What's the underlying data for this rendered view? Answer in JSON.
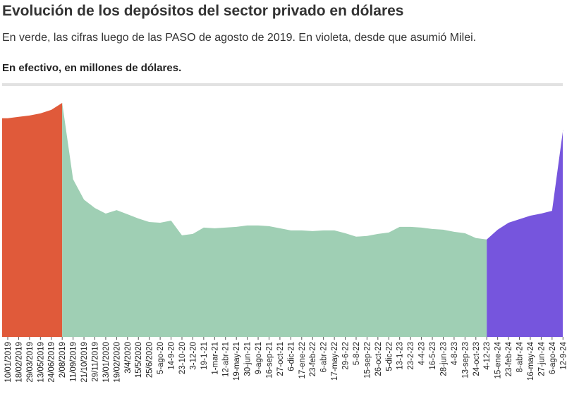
{
  "header": {
    "title": "Evolución de los depósitos del sector privado en dólares",
    "subtitle": "En verde, las cifras luego de las PASO de agosto de 2019. En violeta, desde que asumió Milei.",
    "unit_note": "En efectivo, en millones de dólares."
  },
  "chart_data": {
    "type": "bar",
    "title": "Evolución de los depósitos del sector privado en dólares",
    "subtitle": "En verde, las cifras luego de las PASO de agosto de 2019. En violeta, desde que asumió Milei.",
    "ylabel": "En efectivo, en millones de dólares.",
    "xlabel": "",
    "ylim": [
      0,
      34000
    ],
    "grid": false,
    "legend": "none",
    "colors": {
      "pre_paso": "#e05a3a",
      "post_paso": "#9fcfb4",
      "milei": "#7655dd"
    },
    "tick_labels": [
      "10/01/2019",
      "18/02/2019",
      "29/03/2019",
      "13/05/2019",
      "24/06/2019",
      "2/08/2019",
      "11/09/2019",
      "21/10/2019",
      "29/11/2019",
      "13/01/2020",
      "19/02/2020",
      "3/4/2020",
      "15/5/2020",
      "25/6/2020",
      "5-ago-20",
      "14-9-20",
      "23-10-20",
      "3-12-20",
      "19-1-21",
      "1-mar-21",
      "12-abr-21",
      "19-may-21",
      "30-jun-21",
      "9-ago-21",
      "16-sep-21",
      "27-oct-21",
      "6-dic-21",
      "17-ene-22",
      "23-feb-22",
      "6-abr-22",
      "17-may-22",
      "29-6-22",
      "5-8-22",
      "15-sep-22",
      "26-oct-22",
      "5-dic-22",
      "13-1-23",
      "23-2-23",
      "4-4-23",
      "16-5-23",
      "28-jun-23",
      "4-8-23",
      "13-sep-23",
      "24-oct-23",
      "4-12-23",
      "15-ene-24",
      "23-feb-24",
      "8-abr-24",
      "16-may-24",
      "27-jun-24",
      "6-ago-24",
      "12-9-24"
    ],
    "segments": [
      {
        "period": "pre-PASO",
        "color_key": "pre_paso",
        "from": "10/01/2019",
        "to": "2/08/2019"
      },
      {
        "period": "post-PASO",
        "color_key": "post_paso",
        "from": "2/08/2019",
        "to": "4-12-23"
      },
      {
        "period": "Milei",
        "color_key": "milei",
        "from": "4-12-23",
        "to": "12-9-24"
      }
    ],
    "series": [
      {
        "period": "pre-PASO",
        "values": [
          {
            "x": "10/01/2019",
            "y": 31200
          },
          {
            "x": "18/02/2019",
            "y": 31400
          },
          {
            "x": "29/03/2019",
            "y": 31600
          },
          {
            "x": "13/05/2019",
            "y": 31900
          },
          {
            "x": "24/06/2019",
            "y": 32400
          },
          {
            "x": "2/08/2019",
            "y": 33400
          }
        ]
      },
      {
        "period": "post-PASO",
        "values": [
          {
            "x": "2/08/2019",
            "y": 33400
          },
          {
            "x": "11/09/2019",
            "y": 22500
          },
          {
            "x": "21/10/2019",
            "y": 19600
          },
          {
            "x": "29/11/2019",
            "y": 18400
          },
          {
            "x": "13/01/2020",
            "y": 17600
          },
          {
            "x": "19/02/2020",
            "y": 18100
          },
          {
            "x": "3/4/2020",
            "y": 17500
          },
          {
            "x": "15/5/2020",
            "y": 16900
          },
          {
            "x": "25/6/2020",
            "y": 16400
          },
          {
            "x": "5-ago-20",
            "y": 16300
          },
          {
            "x": "14-9-20",
            "y": 16600
          },
          {
            "x": "23-10-20",
            "y": 14500
          },
          {
            "x": "3-12-20",
            "y": 14700
          },
          {
            "x": "19-1-21",
            "y": 15600
          },
          {
            "x": "1-mar-21",
            "y": 15500
          },
          {
            "x": "12-abr-21",
            "y": 15600
          },
          {
            "x": "19-may-21",
            "y": 15700
          },
          {
            "x": "30-jun-21",
            "y": 15900
          },
          {
            "x": "9-ago-21",
            "y": 15900
          },
          {
            "x": "16-sep-21",
            "y": 15800
          },
          {
            "x": "27-oct-21",
            "y": 15500
          },
          {
            "x": "6-dic-21",
            "y": 15200
          },
          {
            "x": "17-ene-22",
            "y": 15200
          },
          {
            "x": "23-feb-22",
            "y": 15100
          },
          {
            "x": "6-abr-22",
            "y": 15200
          },
          {
            "x": "17-may-22",
            "y": 15200
          },
          {
            "x": "29-6-22",
            "y": 14800
          },
          {
            "x": "5-8-22",
            "y": 14300
          },
          {
            "x": "15-sep-22",
            "y": 14400
          },
          {
            "x": "26-oct-22",
            "y": 14700
          },
          {
            "x": "5-dic-22",
            "y": 14900
          },
          {
            "x": "13-1-23",
            "y": 15700
          },
          {
            "x": "23-2-23",
            "y": 15700
          },
          {
            "x": "4-4-23",
            "y": 15600
          },
          {
            "x": "16-5-23",
            "y": 15400
          },
          {
            "x": "28-jun-23",
            "y": 15300
          },
          {
            "x": "4-8-23",
            "y": 15000
          },
          {
            "x": "13-sep-23",
            "y": 14800
          },
          {
            "x": "24-oct-23",
            "y": 14100
          },
          {
            "x": "4-12-23",
            "y": 13900
          }
        ]
      },
      {
        "period": "Milei",
        "values": [
          {
            "x": "4-12-23",
            "y": 13900
          },
          {
            "x": "15-ene-24",
            "y": 15300
          },
          {
            "x": "23-feb-24",
            "y": 16300
          },
          {
            "x": "8-abr-24",
            "y": 16800
          },
          {
            "x": "16-may-24",
            "y": 17300
          },
          {
            "x": "27-jun-24",
            "y": 17600
          },
          {
            "x": "6-ago-24",
            "y": 18000
          },
          {
            "x": "12-9-24",
            "y": 29500
          }
        ]
      }
    ]
  }
}
